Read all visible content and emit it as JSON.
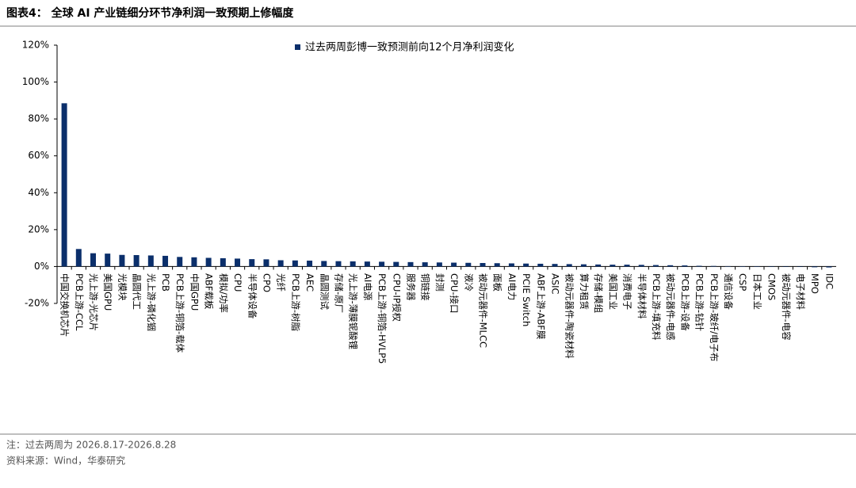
{
  "header": {
    "title": "图表4：  全球 AI 产业链细分环节净利润一致预期上修幅度"
  },
  "chart_data": {
    "type": "bar",
    "categories": [
      "中国交换机芯片",
      "PCB上游-CCL",
      "光上游-光芯片",
      "美国GPU",
      "光模块",
      "晶圆代工",
      "光上游-磷化铟",
      "PCB",
      "PCB上游-铜箔-载体",
      "中国GPU",
      "ABF载板",
      "模拟/功率",
      "CPU",
      "半导体设备",
      "CPO",
      "光纤",
      "PCB上游-树脂",
      "AEC",
      "晶圆测试",
      "存储-原厂",
      "光上游-薄膜铌酸锂",
      "AI电源",
      "PCB上游-铜箔-HVLP5",
      "CPU-IP授权",
      "服务器",
      "铜链接",
      "封测",
      "CPU-接口",
      "液冷",
      "被动元器件-MLCC",
      "面板",
      "AI电力",
      "PCIE Switch",
      "ABF上游-ABF膜",
      "ASIC",
      "被动元器件-陶瓷材料",
      "算力租赁",
      "存储-模组",
      "美国工业",
      "消费电子",
      "半导体材料",
      "PCB上游-填充料",
      "被动元器件-电感",
      "PCB上游-设备",
      "PCB上游-钻针",
      "PCB上游-玻纤/电子布",
      "通信设备",
      "CSP",
      "日本工业",
      "CMOS",
      "被动元器件-电容",
      "电子材料",
      "MPO",
      "IDC"
    ],
    "series": [
      {
        "name": "过去两周彭博一致预测前向12个月净利润变化",
        "color": "#0b2f6b",
        "values": [
          88.5,
          9.5,
          7.2,
          7.0,
          6.3,
          6.2,
          6.0,
          5.8,
          5.2,
          5.0,
          4.7,
          4.5,
          4.3,
          4.0,
          3.9,
          3.4,
          3.3,
          3.2,
          3.0,
          2.9,
          2.8,
          2.7,
          2.6,
          2.5,
          2.4,
          2.3,
          2.2,
          2.1,
          2.0,
          1.9,
          1.8,
          1.7,
          1.6,
          1.5,
          1.4,
          1.3,
          1.2,
          1.1,
          1.0,
          1.0,
          0.9,
          0.8,
          0.7,
          0.6,
          0.4,
          0.3,
          0.2,
          0.15,
          0.1,
          0.05,
          0.0,
          -0.1,
          -0.4,
          -0.5
        ]
      }
    ],
    "ylim": [
      -20,
      120
    ],
    "yticks": [
      {
        "value": -20,
        "label": "-20%"
      },
      {
        "value": 0,
        "label": "0%"
      },
      {
        "value": 20,
        "label": "20%"
      },
      {
        "value": 40,
        "label": "40%"
      },
      {
        "value": 60,
        "label": "60%"
      },
      {
        "value": 80,
        "label": "80%"
      },
      {
        "value": 100,
        "label": "100%"
      },
      {
        "value": 120,
        "label": "120%"
      }
    ]
  },
  "footer": {
    "note": "注：过去两周为 2026.8.17-2026.8.28",
    "source": "资料来源：Wind，华泰研究"
  }
}
